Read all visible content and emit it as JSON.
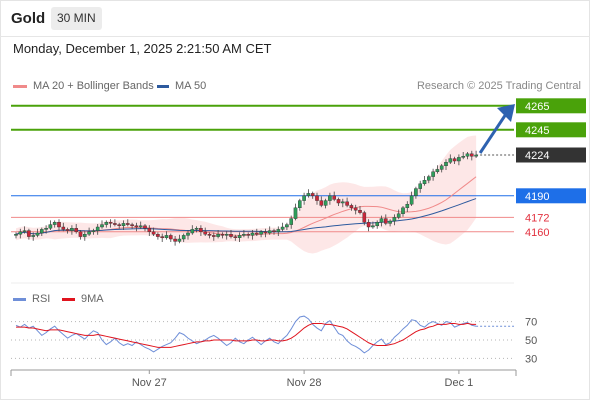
{
  "header": {
    "symbol": "Gold",
    "timeframe": "30 MIN",
    "datetime": "Monday, December 1, 2025 2:21:50 AM CET"
  },
  "legend": {
    "ma20_label": "MA 20 + Bollinger Bands",
    "ma50_label": "MA 50",
    "credit": "Research © 2025 Trading Central",
    "rsi_label": "RSI",
    "rsi_ma_label": "9MA"
  },
  "colors": {
    "resistance": "#4aa20a",
    "current": "#333333",
    "pivot": "#1e6fe8",
    "support": "#e2303e",
    "candle_up": "#2e9e5b",
    "candle_down": "#c9263a",
    "bollinger_fill": "#fde3e3",
    "ma20": "#f08a8a",
    "ma50": "#2d5a9e",
    "rsi": "#6f8fd8",
    "rsi_ma": "#e0141e",
    "arrow": "#2e62b0"
  },
  "chart_data": [
    {
      "type": "candlestick",
      "x_labels": [
        "Nov 27",
        "Nov 28",
        "Dec 1"
      ],
      "price_levels": [
        {
          "value": 4265,
          "label": "4265",
          "kind": "resistance"
        },
        {
          "value": 4245,
          "label": "4245",
          "kind": "resistance"
        },
        {
          "value": 4224,
          "label": "4224",
          "kind": "current"
        },
        {
          "value": 4190,
          "label": "4190",
          "kind": "pivot"
        },
        {
          "value": 4172,
          "label": "4172",
          "kind": "support"
        },
        {
          "value": 4160,
          "label": "4160",
          "kind": "support"
        }
      ],
      "close_series": [
        4158,
        4160,
        4161,
        4156,
        4157,
        4159,
        4162,
        4163,
        4166,
        4168,
        4164,
        4162,
        4161,
        4163,
        4160,
        4156,
        4158,
        4160,
        4161,
        4164,
        4166,
        4168,
        4167,
        4166,
        4165,
        4167,
        4166,
        4165,
        4164,
        4165,
        4163,
        4160,
        4158,
        4156,
        4155,
        4157,
        4154,
        4152,
        4154,
        4157,
        4159,
        4162,
        4163,
        4160,
        4158,
        4157,
        4156,
        4158,
        4157,
        4158,
        4156,
        4155,
        4157,
        4158,
        4157,
        4159,
        4158,
        4160,
        4159,
        4161,
        4160,
        4162,
        4164,
        4166,
        4171,
        4180,
        4186,
        4190,
        4192,
        4190,
        4186,
        4182,
        4186,
        4190,
        4187,
        4184,
        4185,
        4182,
        4180,
        4178,
        4176,
        4168,
        4164,
        4165,
        4168,
        4171,
        4167,
        4169,
        4172,
        4175,
        4180,
        4183,
        4190,
        4196,
        4200,
        4203,
        4206,
        4210,
        4212,
        4215,
        4218,
        4221,
        4219,
        4222,
        4223,
        4225,
        4223,
        4224
      ],
      "rsi_series": [
        66,
        64,
        67,
        63,
        65,
        60,
        55,
        58,
        62,
        65,
        60,
        56,
        52,
        55,
        57,
        54,
        51,
        56,
        60,
        58,
        50,
        45,
        48,
        52,
        47,
        44,
        46,
        44,
        48,
        45,
        42,
        40,
        37,
        40,
        43,
        45,
        47,
        52,
        58,
        56,
        52,
        49,
        46,
        48,
        50,
        53,
        55,
        52,
        48,
        44,
        47,
        52,
        48,
        46,
        50,
        53,
        49,
        45,
        49,
        52,
        48,
        46,
        51,
        55,
        62,
        70,
        75,
        76,
        73,
        67,
        63,
        60,
        68,
        71,
        64,
        57,
        55,
        49,
        45,
        43,
        40,
        36,
        39,
        44,
        48,
        51,
        45,
        47,
        53,
        57,
        62,
        66,
        72,
        71,
        66,
        64,
        68,
        70,
        68,
        66,
        70,
        69,
        64,
        66,
        68,
        69,
        66,
        65
      ],
      "rsi_ma_series": [
        64,
        64,
        64,
        63,
        63,
        62,
        61,
        60,
        61,
        61,
        61,
        60,
        59,
        58,
        57,
        56,
        55,
        55,
        55,
        56,
        55,
        54,
        53,
        52,
        51,
        50,
        49,
        48,
        47,
        46,
        45,
        44,
        43,
        42,
        42,
        42,
        42,
        43,
        44,
        45,
        46,
        47,
        48,
        48,
        49,
        49,
        50,
        50,
        50,
        50,
        50,
        49,
        49,
        49,
        49,
        50,
        50,
        49,
        49,
        50,
        50,
        49,
        49,
        50,
        52,
        55,
        59,
        63,
        66,
        68,
        68,
        68,
        67,
        67,
        66,
        65,
        64,
        62,
        59,
        56,
        53,
        50,
        47,
        45,
        44,
        44,
        44,
        45,
        46,
        48,
        50,
        53,
        56,
        59,
        61,
        62,
        64,
        65,
        67,
        67,
        67,
        68,
        68,
        67,
        67,
        68,
        67,
        67
      ],
      "rsi_levels": [
        70,
        50,
        30
      ],
      "rsi_ylim": [
        20,
        80
      ],
      "n_candles": 108,
      "label_positions_candle_index": [
        31,
        67,
        103
      ]
    }
  ]
}
